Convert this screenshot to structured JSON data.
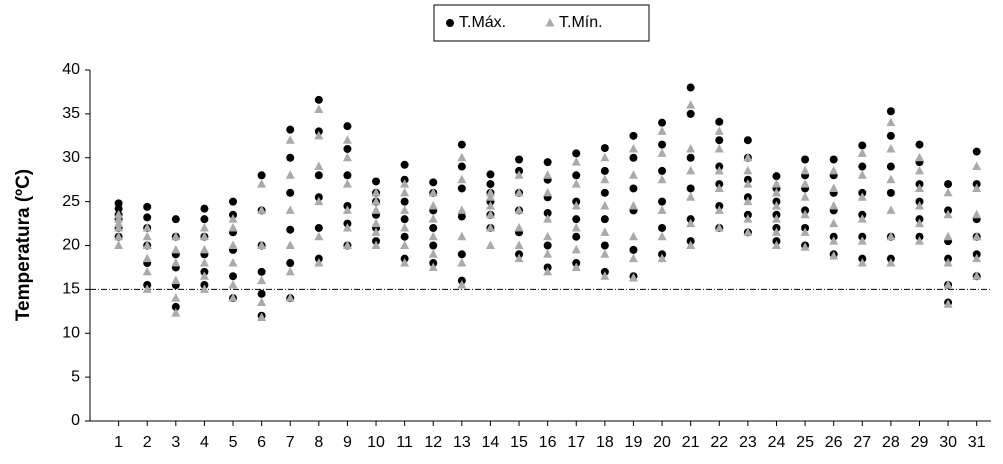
{
  "chart_data": {
    "type": "scatter",
    "y_label": "Temperatura (ºC)",
    "categories": [
      1,
      2,
      3,
      4,
      5,
      6,
      7,
      8,
      9,
      10,
      11,
      12,
      13,
      14,
      15,
      16,
      17,
      18,
      19,
      20,
      21,
      22,
      23,
      24,
      25,
      26,
      27,
      28,
      29,
      30,
      31
    ],
    "xlim": [
      0,
      31.5
    ],
    "ylim": [
      0,
      40
    ],
    "yticks": [
      0,
      5,
      10,
      15,
      20,
      25,
      30,
      35,
      40
    ],
    "hline": 15,
    "legend": "top",
    "series": [
      {
        "name": "T.Máx.",
        "color": "#000000",
        "marker": "circle",
        "values": [
          [
            21,
            22,
            23,
            23.5,
            24.2,
            24.8
          ],
          [
            15.5,
            18,
            20,
            22,
            23.2,
            24.4
          ],
          [
            13,
            15.5,
            17.5,
            19,
            21,
            23
          ],
          [
            15.5,
            17,
            19,
            21,
            23,
            24.2
          ],
          [
            14,
            16.5,
            19.5,
            21.5,
            23.5,
            25
          ],
          [
            12,
            14.5,
            17,
            20,
            24,
            28
          ],
          [
            14,
            18,
            21.8,
            26,
            30,
            33.2
          ],
          [
            18.5,
            22,
            25.5,
            28,
            33,
            36.6
          ],
          [
            20,
            22.5,
            24.5,
            28,
            31,
            33.6
          ],
          [
            20.5,
            22,
            23.5,
            25,
            26,
            27.3
          ],
          [
            18.5,
            21,
            23,
            25,
            27.5,
            29.2
          ],
          [
            18,
            20,
            22,
            24,
            26,
            27.2
          ],
          [
            16,
            19,
            23.3,
            26.5,
            29,
            31.5
          ],
          [
            22,
            23.5,
            25,
            26,
            27,
            28.1
          ],
          [
            19,
            21.5,
            24,
            26,
            28.5,
            29.8
          ],
          [
            17.5,
            20,
            23.7,
            25.5,
            27.5,
            29.5
          ],
          [
            18,
            21,
            23,
            25,
            28,
            30.5
          ],
          [
            17,
            20,
            23,
            26,
            28.5,
            31.1
          ],
          [
            16.5,
            19.5,
            24,
            26.5,
            30,
            32.5
          ],
          [
            19,
            22,
            25,
            28.5,
            31.5,
            34
          ],
          [
            20.5,
            23,
            26.5,
            30,
            35,
            38
          ],
          [
            22,
            24.5,
            27,
            29,
            32,
            34.1
          ],
          [
            21.5,
            23.5,
            25.5,
            27.5,
            30,
            32
          ],
          [
            20.5,
            22,
            23.5,
            25,
            26.5,
            27.9
          ],
          [
            20,
            22,
            24,
            26.5,
            28,
            29.8
          ],
          [
            19,
            21,
            24,
            26,
            28,
            29.8
          ],
          [
            18.5,
            21,
            23.5,
            26,
            29,
            31.4
          ],
          [
            18.5,
            21,
            26,
            29,
            32.5,
            35.3
          ],
          [
            21,
            23,
            25,
            27,
            29.5,
            31.5
          ],
          [
            13.5,
            15.5,
            18.5,
            20.5,
            24,
            27
          ],
          [
            16.5,
            19,
            21,
            23,
            27,
            30.7
          ]
        ]
      },
      {
        "name": "T.Mín.",
        "color": "#aaaaaa",
        "marker": "triangle",
        "values": [
          [
            20,
            21,
            22,
            22.5,
            23,
            23.5
          ],
          [
            15,
            17,
            18.5,
            20,
            21,
            22
          ],
          [
            12.3,
            14,
            16,
            18,
            19.5,
            21
          ],
          [
            15,
            16.5,
            18,
            19.5,
            21,
            22
          ],
          [
            14,
            15.5,
            18,
            20,
            22,
            23
          ],
          [
            11.8,
            13.5,
            16,
            20,
            24,
            27
          ],
          [
            14,
            17,
            20,
            24,
            28,
            32
          ],
          [
            18,
            21,
            25,
            29,
            32.5,
            35.5
          ],
          [
            20,
            22,
            24,
            27,
            30,
            32
          ],
          [
            20,
            21.5,
            22.5,
            24,
            25,
            26
          ],
          [
            18,
            20,
            22,
            24,
            26,
            27
          ],
          [
            17.5,
            19,
            21,
            23,
            24.5,
            26
          ],
          [
            15.5,
            18,
            21,
            24,
            27.5,
            30
          ],
          [
            20,
            22,
            23.5,
            24.5,
            25.5,
            26
          ],
          [
            18.5,
            20,
            22,
            24,
            26,
            28
          ],
          [
            17,
            19,
            21,
            23,
            26,
            28
          ],
          [
            17.5,
            19.5,
            22,
            24.5,
            27,
            29.5
          ],
          [
            16.5,
            19,
            21.5,
            24.5,
            27.5,
            30
          ],
          [
            16.3,
            18.5,
            21,
            24.5,
            28,
            31
          ],
          [
            18.5,
            21,
            24,
            27.5,
            30.5,
            33
          ],
          [
            20,
            22.5,
            25.5,
            28.5,
            31,
            36
          ],
          [
            22,
            24,
            26.5,
            28.5,
            31,
            33
          ],
          [
            21.5,
            23,
            25,
            27,
            28.5,
            30
          ],
          [
            20,
            21.5,
            23,
            24.5,
            26,
            27
          ],
          [
            19.8,
            21.5,
            23.5,
            25.5,
            27,
            28.5
          ],
          [
            18.8,
            20.5,
            22.5,
            24.5,
            26.5,
            28.5
          ],
          [
            18,
            20.5,
            23,
            25.5,
            28,
            30.5
          ],
          [
            18,
            21,
            24,
            27.5,
            31,
            34
          ],
          [
            20.5,
            22.5,
            24.5,
            26.5,
            28.5,
            30
          ],
          [
            13.3,
            15.5,
            18,
            21,
            23.5,
            26
          ],
          [
            16.5,
            18.5,
            21,
            23.5,
            26.5,
            29
          ]
        ]
      }
    ]
  }
}
